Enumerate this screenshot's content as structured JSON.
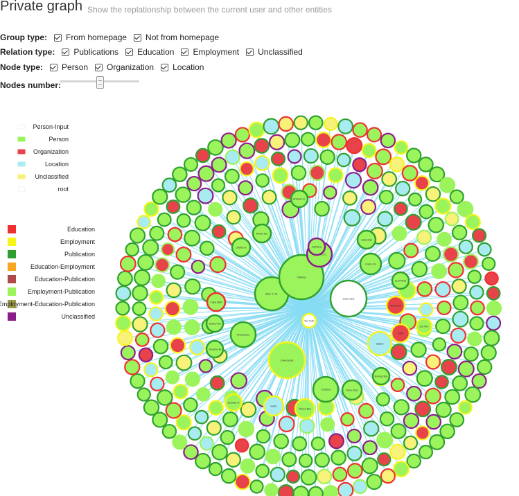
{
  "header": {
    "title": "Private graph",
    "subtitle": "Show the replationship between the current user and other entities"
  },
  "controls": {
    "group_type": {
      "label": "Group type:",
      "options": [
        "From homepage",
        "Not from homepage"
      ]
    },
    "relation_type": {
      "label": "Relation type:",
      "options": [
        "Publications",
        "Education",
        "Employment",
        "Unclassified"
      ]
    },
    "node_type": {
      "label": "Node type:",
      "options": [
        "Person",
        "Organization",
        "Location"
      ]
    },
    "nodes_number": {
      "label": "Nodes number:",
      "level": 0.5
    }
  },
  "node_legend": [
    {
      "label": "Person-Input",
      "color": "#ffffff"
    },
    {
      "label": "Person",
      "color": "#9cf45c"
    },
    {
      "label": "Organization",
      "color": "#e8424a"
    },
    {
      "label": "Location",
      "color": "#a8ecf2"
    },
    {
      "label": "Unclassified",
      "color": "#f8f27a"
    },
    {
      "label": "root",
      "color": "#ffffff"
    }
  ],
  "edge_legend": [
    {
      "label": "Education",
      "color": "#f03030"
    },
    {
      "label": "Employment",
      "color": "#f5f51a"
    },
    {
      "label": "Publication",
      "color": "#2fa02f"
    },
    {
      "label": "Education-Employment",
      "color": "#f6a623"
    },
    {
      "label": "Education-Publication",
      "color": "#b04a4a"
    },
    {
      "label": "Employment-Publication",
      "color": "#9cf45c"
    },
    {
      "label": "Employment-Education-Publication",
      "color": "#9a9a4a"
    },
    {
      "label": "Unclassified",
      "color": "#8b1d8b"
    }
  ],
  "graph": {
    "edge_color": "#87dcf4",
    "big_nodes": [
      {
        "label": "Alex J. W.",
        "fill": "#9cf45c",
        "stroke": "#2fa02f"
      },
      {
        "label": "Olivera",
        "fill": "#9cf45c",
        "stroke": "#2fa02f"
      },
      {
        "label": "Joel Lane",
        "fill": "#ffffff",
        "stroke": "#2fa02f"
      },
      {
        "label": "Olivera Bo",
        "fill": "#9cf45c",
        "stroke": "#f5f51a"
      },
      {
        "label": "Teo Kali",
        "fill": "#ffffff",
        "stroke": "#f5f51a"
      },
      {
        "label": "Francesco",
        "fill": "#9cf45c",
        "stroke": "#2fa02f"
      },
      {
        "label": "Cristina",
        "fill": "#9cf45c",
        "stroke": "#2fa02f"
      },
      {
        "label": "Dora Dezi",
        "fill": "#9cf45c",
        "stroke": "#2fa02f"
      },
      {
        "label": "Isabel",
        "fill": "#a8ecf2",
        "stroke": "#f5f51a"
      },
      {
        "label": "Giovanni",
        "fill": "#e8424a",
        "stroke": "#f5f51a"
      },
      {
        "label": "Massimo C.",
        "fill": "#9cf45c",
        "stroke": "#8b1d8b"
      },
      {
        "label": "Liliana A.",
        "fill": "#9cf45c",
        "stroke": "#2fa02f"
      },
      {
        "label": "Anna Teo",
        "fill": "#9cf45c",
        "stroke": "#2fa02f"
      },
      {
        "label": "Carlo Pe",
        "fill": "#9cf45c",
        "stroke": "#2fa02f"
      },
      {
        "label": "Julia Glei",
        "fill": "#9cf45c",
        "stroke": "#2fa02f"
      },
      {
        "label": "Hello",
        "fill": "#a8ecf2",
        "stroke": "#f5f51a"
      },
      {
        "label": "Paolo Bia",
        "fill": "#9cf45c",
        "stroke": "#f5f51a"
      },
      {
        "label": "Antonio E.",
        "fill": "#9cf45c",
        "stroke": "#2fa02f"
      },
      {
        "label": "Luka Bari",
        "fill": "#9cf45c",
        "stroke": "#f03030"
      },
      {
        "label": "Esther Ab",
        "fill": "#9cf45c",
        "stroke": "#2fa02f"
      },
      {
        "label": "Simone Al",
        "fill": "#9cf45c",
        "stroke": "#2fa02f"
      },
      {
        "label": "Donald H",
        "fill": "#9cf45c",
        "stroke": "#f5f51a"
      },
      {
        "label": "Zuri Rina",
        "fill": "#9cf45c",
        "stroke": "#2fa02f"
      },
      {
        "label": "Emma Sto",
        "fill": "#9cf45c",
        "stroke": "#2fa02f"
      },
      {
        "label": "Adriano",
        "fill": "#9cf45c",
        "stroke": "#8b1d8b"
      },
      {
        "label": "Zio Rin",
        "fill": "#9cf45c",
        "stroke": "#f5f51a"
      },
      {
        "label": "CNR",
        "fill": "#e8424a",
        "stroke": "#f5f51a"
      }
    ]
  }
}
